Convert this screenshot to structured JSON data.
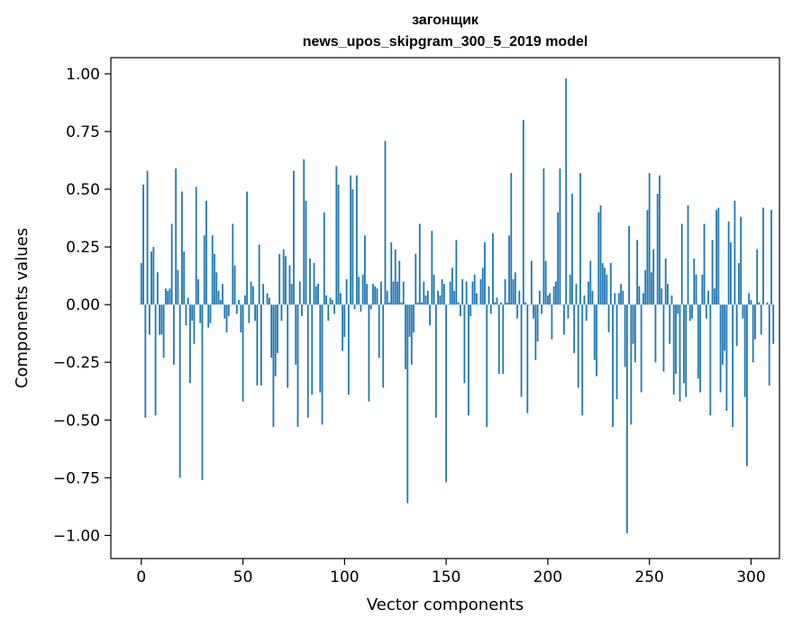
{
  "chart_data": {
    "type": "bar",
    "title_line1": "загонщик",
    "title_line2": "news_upos_skipgram_300_5_2019 model",
    "xlabel": "Vector components",
    "ylabel": "Components values",
    "xlim": [
      -15,
      314
    ],
    "ylim": [
      -1.1,
      1.07
    ],
    "x_ticks": [
      0,
      50,
      100,
      150,
      200,
      250,
      300
    ],
    "x_tick_labels": [
      "0",
      "50",
      "100",
      "150",
      "200",
      "250",
      "300"
    ],
    "y_ticks": [
      1.0,
      0.75,
      0.5,
      0.25,
      0.0,
      -0.25,
      -0.5,
      -0.75,
      -1.0
    ],
    "y_tick_labels": [
      "1.00",
      "0.75",
      "0.50",
      "0.25",
      "0.00",
      "−0.25",
      "−0.50",
      "−0.75",
      "−1.00"
    ],
    "bar_color": "#1f77b4",
    "values": [
      0.18,
      0.52,
      -0.49,
      0.58,
      -0.13,
      0.23,
      0.25,
      -0.48,
      0.14,
      -0.13,
      -0.13,
      -0.23,
      0.07,
      0.06,
      0.07,
      0.35,
      -0.26,
      0.59,
      0.15,
      -0.75,
      0.49,
      0.23,
      -0.09,
      0.03,
      -0.34,
      -0.07,
      -0.17,
      0.51,
      0.11,
      -0.08,
      -0.76,
      0.3,
      0.45,
      -0.1,
      -0.08,
      0.3,
      0.22,
      0.14,
      0.06,
      0.02,
      0.09,
      -0.06,
      -0.12,
      -0.05,
      0.0,
      0.35,
      0.17,
      -0.04,
      0.02,
      -0.12,
      -0.42,
      0.04,
      0.49,
      -0.08,
      0.1,
      0.08,
      -0.07,
      -0.35,
      0.26,
      -0.35,
      0.09,
      0.0,
      0.05,
      0.03,
      -0.23,
      -0.53,
      -0.31,
      -0.21,
      0.22,
      -0.07,
      0.24,
      0.21,
      -0.36,
      0.17,
      0.09,
      0.58,
      -0.26,
      -0.53,
      0.1,
      -0.05,
      0.63,
      0.45,
      -0.49,
      0.2,
      -0.39,
      0.18,
      0.08,
      0.09,
      -0.38,
      -0.52,
      0.4,
      0.04,
      -0.07,
      0.03,
      0.02,
      -0.04,
      0.6,
      0.52,
      0.05,
      -0.2,
      -0.14,
      0.11,
      -0.39,
      0.56,
      0.5,
      -0.02,
      0.56,
      0.12,
      -0.03,
      0.13,
      0.3,
      0.09,
      -0.42,
      -0.02,
      0.09,
      0.08,
      0.07,
      -0.23,
      0.1,
      -0.36,
      0.71,
      0.06,
      0.01,
      0.27,
      0.1,
      0.24,
      0.1,
      0.19,
      0.01,
      0.1,
      -0.28,
      -0.86,
      -0.14,
      -0.26,
      -0.12,
      0.22,
      0.01,
      0.35,
      0.01,
      0.1,
      0.04,
      0.06,
      -0.09,
      0.32,
      0.13,
      -0.49,
      0.06,
      0.04,
      0.11,
      0.09,
      -0.77,
      0.0,
      0.1,
      0.16,
      0.06,
      0.28,
      0.01,
      -0.05,
      0.11,
      -0.34,
      0.1,
      -0.48,
      -0.05,
      0.1,
      0.13,
      0.05,
      0.0,
      0.11,
      0.16,
      0.27,
      -0.53,
      0.08,
      -0.04,
      0.31,
      0.01,
      0.03,
      -0.3,
      0.01,
      -0.3,
      0.11,
      0.01,
      0.3,
      0.57,
      0.11,
      0.14,
      -0.06,
      0.06,
      -0.4,
      0.8,
      0.01,
      -0.47,
      0.0,
      0.19,
      -0.06,
      -0.24,
      -0.16,
      0.06,
      -0.04,
      0.59,
      0.19,
      0.04,
      0.05,
      -0.15,
      0.08,
      0.1,
      0.4,
      0.59,
      0.0,
      -0.13,
      0.98,
      -0.06,
      0.13,
      0.48,
      -0.21,
      0.09,
      -0.36,
      0.57,
      -0.48,
      0.04,
      -0.07,
      0.1,
      0.19,
      0.06,
      -0.24,
      -0.31,
      0.4,
      0.43,
      0.18,
      0.16,
      0.13,
      -0.12,
      0.18,
      -0.53,
      0.05,
      -0.41,
      0.05,
      0.09,
      0.06,
      -0.27,
      -0.99,
      0.34,
      -0.52,
      -0.17,
      -0.25,
      0.28,
      0.08,
      -0.38,
      0.05,
      0.15,
      0.41,
      0.57,
      0.14,
      0.24,
      -0.25,
      0.48,
      0.56,
      0.07,
      -0.29,
      0.2,
      0.09,
      -0.17,
      0.04,
      -0.39,
      -0.3,
      -0.04,
      -0.42,
      0.35,
      -0.34,
      -0.4,
      0.43,
      -0.07,
      -0.06,
      0.2,
      0.13,
      -0.32,
      -0.38,
      0.13,
      0.35,
      -0.06,
      0.06,
      -0.48,
      0.28,
      0.07,
      0.41,
      0.42,
      -0.38,
      -0.26,
      -0.2,
      -0.46,
      0.36,
      0.27,
      -0.53,
      0.45,
      -0.18,
      0.18,
      0.38,
      -0.06,
      -0.4,
      -0.7,
      0.05,
      0.02,
      -0.25,
      -0.15,
      0.24,
      0.01,
      -0.13,
      0.42,
      0.0,
      0.01,
      -0.35,
      0.41,
      -0.17
    ]
  }
}
